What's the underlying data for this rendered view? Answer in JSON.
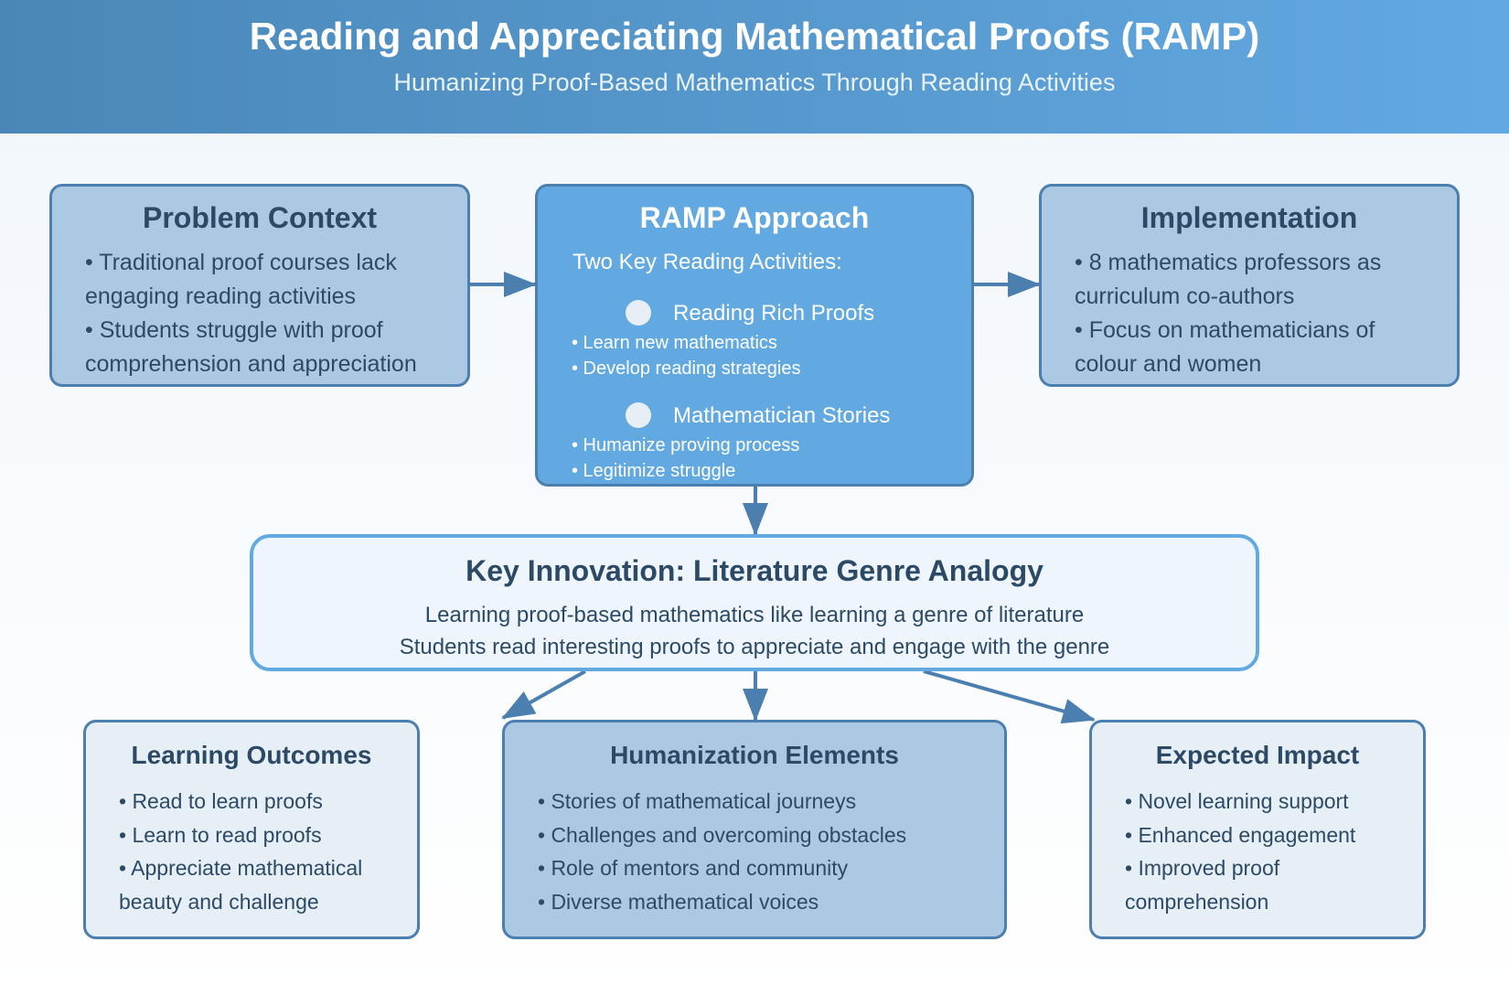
{
  "header": {
    "title": "Reading and Appreciating Mathematical Proofs (RAMP)",
    "subtitle": "Humanizing Proof-Based Mathematics Through Reading Activities"
  },
  "problem": {
    "title": "Problem Context",
    "items": [
      "• Traditional proof courses lack engaging reading activities",
      "• Students struggle with proof comprehension and appreciation"
    ]
  },
  "ramp": {
    "title": "RAMP Approach",
    "lead": "Two Key Reading Activities:",
    "activities": [
      {
        "title": "Reading Rich Proofs",
        "items": [
          "• Learn new mathematics",
          "• Develop reading strategies"
        ]
      },
      {
        "title": "Mathematician Stories",
        "items": [
          "• Humanize proving process",
          "• Legitimize struggle"
        ]
      }
    ]
  },
  "implementation": {
    "title": "Implementation",
    "items": [
      "• 8 mathematics professors as curriculum co-authors",
      "• Focus on mathematicians of colour and women"
    ]
  },
  "innovation": {
    "title": "Key Innovation: Literature Genre Analogy",
    "line1": "Learning proof-based mathematics like learning a genre of literature",
    "line2": "Students read interesting proofs to appreciate and engage with the genre"
  },
  "outcomes": {
    "title": "Learning Outcomes",
    "items": [
      "• Read to learn proofs",
      "• Learn to read proofs",
      "• Appreciate mathematical beauty and challenge"
    ]
  },
  "humanization": {
    "title": "Humanization Elements",
    "items": [
      "• Stories of mathematical journeys",
      "• Challenges and overcoming obstacles",
      "• Role of mentors and community",
      "• Diverse mathematical voices"
    ]
  },
  "impact": {
    "title": "Expected Impact",
    "items": [
      "• Novel learning support",
      "• Enhanced engagement",
      "• Improved proof comprehension"
    ]
  },
  "colors": {
    "header_start": "#4a87b8",
    "header_end": "#62a9e2",
    "box_dark": "#62a9e2",
    "box_mid": "#acc9e3",
    "box_light": "#e6eef6",
    "border": "#4a7fb0",
    "text": "#2c4a66"
  }
}
